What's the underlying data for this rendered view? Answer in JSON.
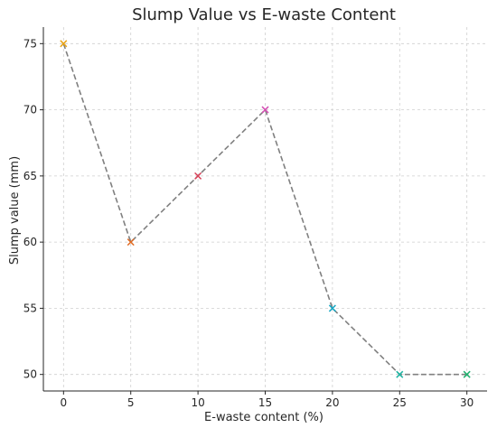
{
  "chart_data": {
    "type": "line",
    "title": "Slump Value vs E-waste Content",
    "xlabel": "E-waste content (%)",
    "ylabel": "Slump value (mm)",
    "x": [
      0,
      5,
      10,
      15,
      20,
      25,
      30
    ],
    "y": [
      75,
      60,
      65,
      70,
      55,
      50,
      50
    ],
    "xlim": [
      -1.5,
      31.5
    ],
    "ylim": [
      48.75,
      76.25
    ],
    "xticks": [
      0,
      5,
      10,
      15,
      20,
      25,
      30
    ],
    "yticks": [
      50,
      55,
      60,
      65,
      70,
      75
    ],
    "grid": true,
    "line_style": "dashed",
    "line_color": "#808080",
    "marker": "x",
    "marker_colors": [
      "#e8a317",
      "#e06a22",
      "#d94158",
      "#d44fb3",
      "#19a8c4",
      "#1fb5a3",
      "#1fb16e"
    ]
  }
}
